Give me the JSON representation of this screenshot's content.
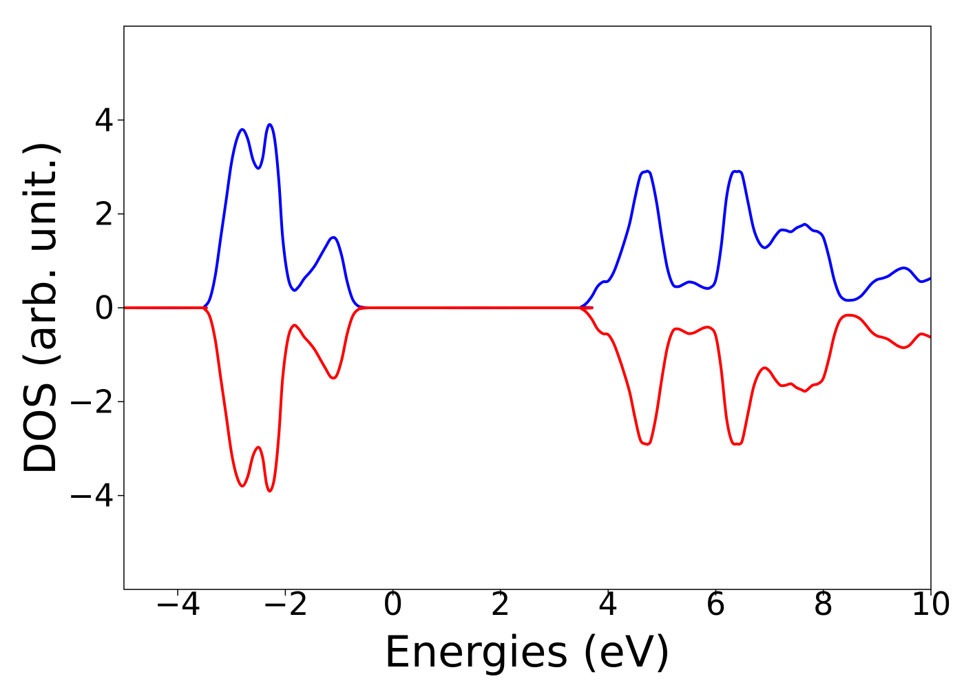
{
  "chart_data": {
    "type": "line",
    "title": "",
    "xlabel": "Energies (eV)",
    "ylabel": "DOS (arb. unit.)",
    "xlim": [
      -5,
      10
    ],
    "ylim": [
      -6,
      6
    ],
    "xticks": [
      -4,
      -2,
      0,
      2,
      4,
      6,
      8,
      10
    ],
    "xtick_labels": [
      "−4",
      "−2",
      "0",
      "2",
      "4",
      "6",
      "8",
      "10"
    ],
    "yticks": [
      -4,
      -2,
      0,
      2,
      4
    ],
    "ytick_labels": [
      "−4",
      "−2",
      "0",
      "2",
      "4"
    ],
    "grid": false,
    "legend": "none",
    "series": [
      {
        "color": "#0000ff",
        "x": [
          -5.0,
          -3.6,
          -3.5,
          -3.4,
          -3.3,
          -3.2,
          -3.1,
          -3.0,
          -2.9,
          -2.8,
          -2.7,
          -2.6,
          -2.5,
          -2.42,
          -2.35,
          -2.28,
          -2.2,
          -2.12,
          -2.05,
          -1.95,
          -1.85,
          -1.75,
          -1.65,
          -1.55,
          -1.45,
          -1.35,
          -1.25,
          -1.15,
          -1.05,
          -0.95,
          -0.85,
          -0.75,
          -0.65,
          -0.55,
          -0.45,
          -0.3,
          3.4,
          3.5,
          3.6,
          3.7,
          3.8,
          3.9,
          4.0,
          4.1,
          4.2,
          4.3,
          4.4,
          4.5,
          4.6,
          4.7,
          4.75,
          4.8,
          4.9,
          5.0,
          5.1,
          5.2,
          5.3,
          5.4,
          5.5,
          5.6,
          5.7,
          5.8,
          5.9,
          6.0,
          6.1,
          6.2,
          6.3,
          6.4,
          6.45,
          6.5,
          6.6,
          6.7,
          6.8,
          6.9,
          7.0,
          7.1,
          7.2,
          7.3,
          7.4,
          7.5,
          7.6,
          7.65,
          7.7,
          7.8,
          7.9,
          8.0,
          8.1,
          8.2,
          8.3,
          8.4,
          8.5,
          8.6,
          8.7,
          8.8,
          8.9,
          9.0,
          9.1,
          9.2,
          9.3,
          9.4,
          9.5,
          9.6,
          9.7,
          9.8,
          9.9,
          10.0
        ],
        "y": [
          0.0,
          0.0,
          0.03,
          0.2,
          0.7,
          1.5,
          2.3,
          3.1,
          3.6,
          3.8,
          3.6,
          3.15,
          2.97,
          3.2,
          3.75,
          3.9,
          3.6,
          2.7,
          1.5,
          0.65,
          0.38,
          0.45,
          0.62,
          0.75,
          0.9,
          1.1,
          1.3,
          1.48,
          1.45,
          1.1,
          0.55,
          0.18,
          0.04,
          0.01,
          0.0,
          0.0,
          0.0,
          0.02,
          0.1,
          0.25,
          0.45,
          0.55,
          0.57,
          0.75,
          1.05,
          1.4,
          1.8,
          2.35,
          2.82,
          2.9,
          2.9,
          2.8,
          2.25,
          1.5,
          0.85,
          0.5,
          0.45,
          0.5,
          0.55,
          0.53,
          0.47,
          0.42,
          0.43,
          0.6,
          1.3,
          2.35,
          2.85,
          2.9,
          2.9,
          2.8,
          2.25,
          1.7,
          1.4,
          1.28,
          1.35,
          1.52,
          1.65,
          1.65,
          1.62,
          1.7,
          1.75,
          1.78,
          1.75,
          1.65,
          1.62,
          1.5,
          1.1,
          0.6,
          0.28,
          0.17,
          0.16,
          0.18,
          0.25,
          0.38,
          0.52,
          0.6,
          0.63,
          0.67,
          0.75,
          0.82,
          0.85,
          0.8,
          0.67,
          0.56,
          0.58,
          0.63
        ]
      },
      {
        "color": "#ff0000",
        "x": [
          -5.0,
          -3.6,
          -3.5,
          -3.4,
          -3.3,
          -3.2,
          -3.1,
          -3.0,
          -2.9,
          -2.8,
          -2.7,
          -2.6,
          -2.5,
          -2.42,
          -2.35,
          -2.28,
          -2.2,
          -2.12,
          -2.05,
          -1.95,
          -1.85,
          -1.75,
          -1.65,
          -1.55,
          -1.45,
          -1.35,
          -1.25,
          -1.15,
          -1.05,
          -0.95,
          -0.85,
          -0.75,
          -0.65,
          -0.55,
          -0.45,
          -0.3,
          3.4,
          3.5,
          3.6,
          3.7,
          3.8,
          3.9,
          4.0,
          4.1,
          4.2,
          4.3,
          4.4,
          4.5,
          4.6,
          4.7,
          4.75,
          4.8,
          4.9,
          5.0,
          5.1,
          5.2,
          5.3,
          5.4,
          5.5,
          5.6,
          5.7,
          5.8,
          5.9,
          6.0,
          6.1,
          6.2,
          6.3,
          6.4,
          6.45,
          6.5,
          6.6,
          6.7,
          6.8,
          6.9,
          7.0,
          7.1,
          7.2,
          7.3,
          7.4,
          7.5,
          7.6,
          7.65,
          7.7,
          7.8,
          7.9,
          8.0,
          8.1,
          8.2,
          8.3,
          8.4,
          8.5,
          8.6,
          8.7,
          8.8,
          8.9,
          9.0,
          9.1,
          9.2,
          9.3,
          9.4,
          9.5,
          9.6,
          9.7,
          9.8,
          9.9,
          10.0
        ],
        "y": [
          0.0,
          0.0,
          -0.03,
          -0.2,
          -0.7,
          -1.5,
          -2.3,
          -3.1,
          -3.6,
          -3.8,
          -3.6,
          -3.15,
          -2.97,
          -3.2,
          -3.75,
          -3.9,
          -3.6,
          -2.7,
          -1.5,
          -0.65,
          -0.38,
          -0.45,
          -0.62,
          -0.75,
          -0.9,
          -1.1,
          -1.3,
          -1.48,
          -1.45,
          -1.1,
          -0.55,
          -0.18,
          -0.04,
          -0.01,
          0.0,
          0.0,
          0.0,
          -0.02,
          -0.1,
          -0.25,
          -0.45,
          -0.55,
          -0.57,
          -0.75,
          -1.05,
          -1.4,
          -1.8,
          -2.35,
          -2.82,
          -2.9,
          -2.9,
          -2.8,
          -2.25,
          -1.5,
          -0.85,
          -0.5,
          -0.45,
          -0.5,
          -0.55,
          -0.53,
          -0.47,
          -0.42,
          -0.43,
          -0.6,
          -1.3,
          -2.35,
          -2.85,
          -2.9,
          -2.9,
          -2.8,
          -2.25,
          -1.7,
          -1.4,
          -1.28,
          -1.35,
          -1.52,
          -1.65,
          -1.65,
          -1.62,
          -1.7,
          -1.75,
          -1.78,
          -1.75,
          -1.65,
          -1.62,
          -1.5,
          -1.1,
          -0.6,
          -0.28,
          -0.17,
          -0.16,
          -0.18,
          -0.25,
          -0.38,
          -0.52,
          -0.6,
          -0.63,
          -0.67,
          -0.75,
          -0.82,
          -0.85,
          -0.8,
          -0.67,
          -0.56,
          -0.58,
          -0.63
        ]
      }
    ]
  }
}
